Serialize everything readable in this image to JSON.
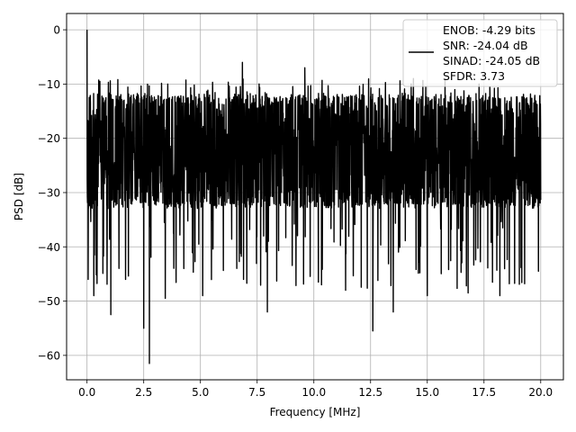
{
  "chart_data": {
    "type": "line",
    "title": "",
    "xlabel": "Frequency [MHz]",
    "ylabel": "PSD [dB]",
    "xlim": [
      -0.9,
      21.0
    ],
    "ylim": [
      -64.5,
      3.0
    ],
    "x_ticks": [
      0.0,
      2.5,
      5.0,
      7.5,
      10.0,
      12.5,
      15.0,
      17.5,
      20.0
    ],
    "x_tick_labels": [
      "0.0",
      "2.5",
      "5.0",
      "7.5",
      "10.0",
      "12.5",
      "15.0",
      "17.5",
      "20.0"
    ],
    "y_ticks": [
      0,
      -10,
      -20,
      -30,
      -40,
      -50,
      -60
    ],
    "y_tick_labels": [
      "0",
      "−10",
      "−20",
      "−30",
      "−40",
      "−50",
      "−60"
    ],
    "grid": true,
    "legend_position": "top-right",
    "legend_text": [
      "ENOB: -4.29 bits",
      "SNR: -24.04 dB",
      "SINAD: -24.05 dB",
      "SFDR: 3.73"
    ],
    "series": [
      {
        "color": "#000000",
        "x_range": [
          0.0,
          20.0
        ],
        "typical_band_db": [
          -33,
          -12
        ],
        "notable_points": [
          {
            "x": 0.0,
            "y": 0.0
          },
          {
            "x": 0.05,
            "y": -46.0
          },
          {
            "x": 0.3,
            "y": -49.0
          },
          {
            "x": 1.05,
            "y": -52.5
          },
          {
            "x": 1.7,
            "y": -46.0
          },
          {
            "x": 2.5,
            "y": -55.0
          },
          {
            "x": 2.75,
            "y": -61.5
          },
          {
            "x": 3.45,
            "y": -49.5
          },
          {
            "x": 5.1,
            "y": -49.0
          },
          {
            "x": 6.85,
            "y": -6.0
          },
          {
            "x": 6.9,
            "y": -46.0
          },
          {
            "x": 7.95,
            "y": -52.0
          },
          {
            "x": 9.6,
            "y": -7.0
          },
          {
            "x": 10.2,
            "y": -46.5
          },
          {
            "x": 11.4,
            "y": -48.0
          },
          {
            "x": 12.6,
            "y": -55.5
          },
          {
            "x": 13.5,
            "y": -52.0
          },
          {
            "x": 15.0,
            "y": -49.0
          },
          {
            "x": 16.8,
            "y": -48.5
          },
          {
            "x": 18.2,
            "y": -49.0
          },
          {
            "x": 19.9,
            "y": -44.5
          }
        ]
      }
    ]
  }
}
